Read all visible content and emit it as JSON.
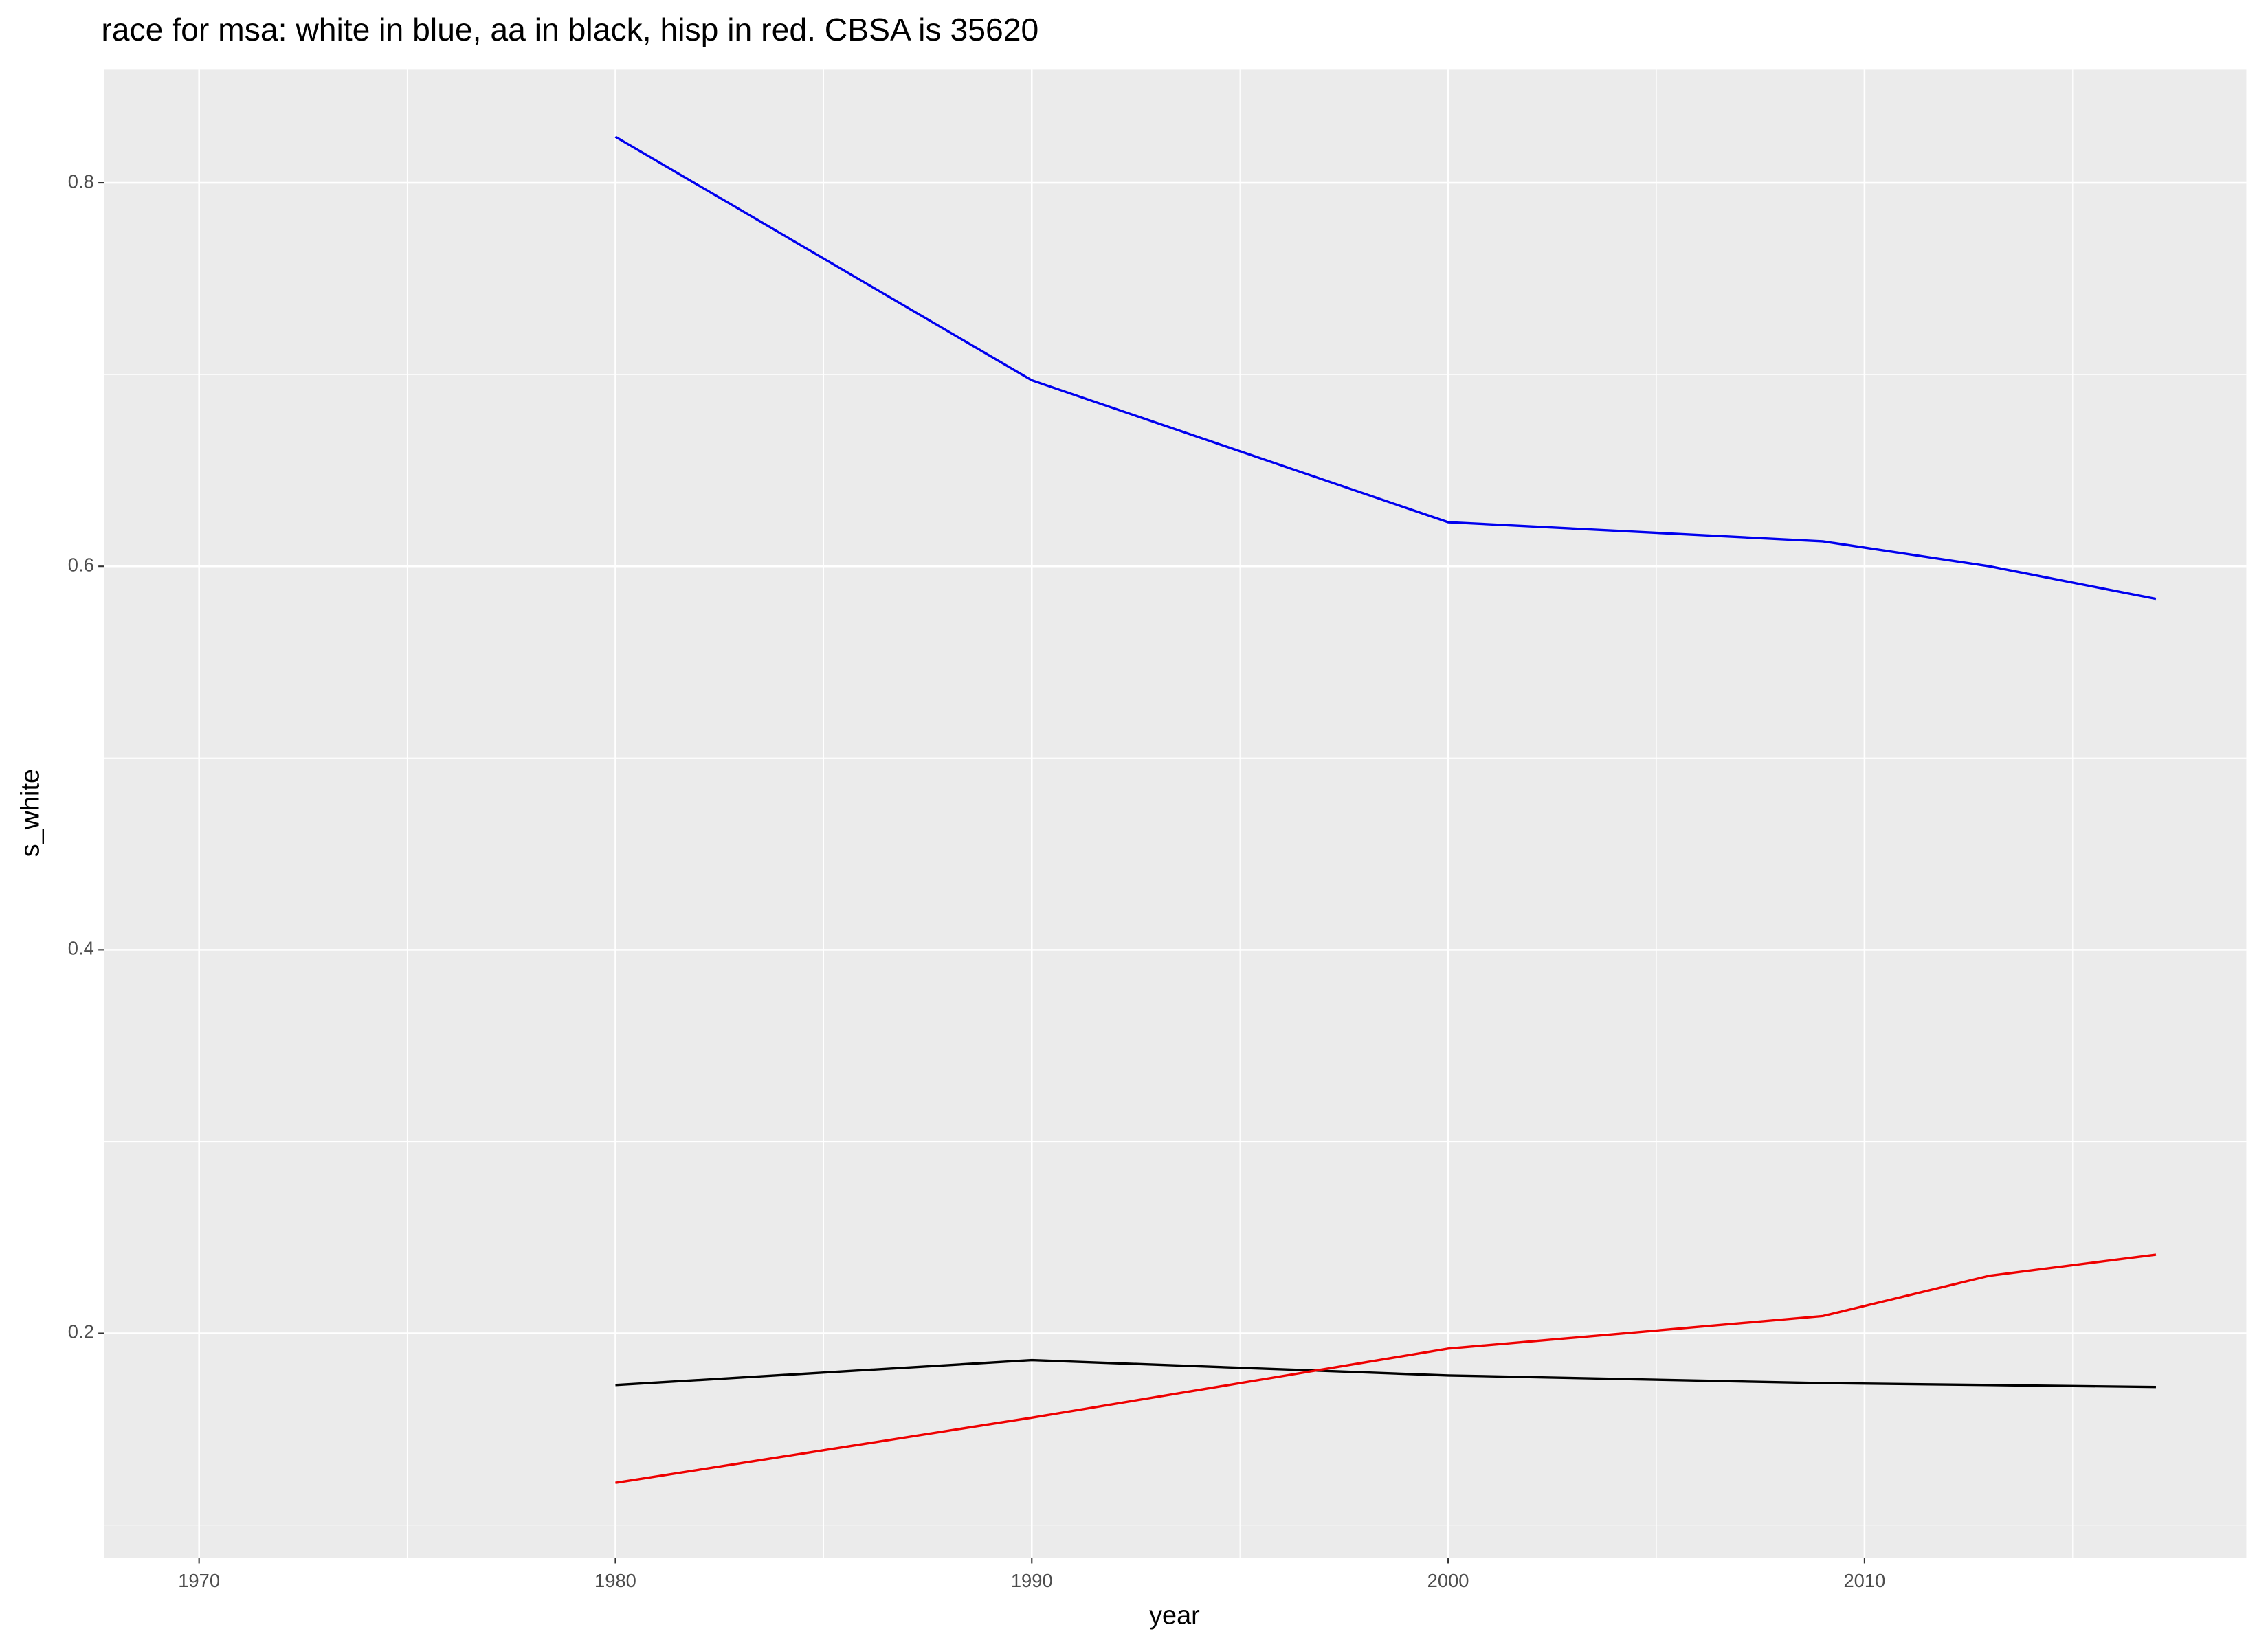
{
  "chart_data": {
    "type": "line",
    "title": "race for msa: white in blue, aa in black, hisp in red. CBSA is 35620",
    "x_label": "year",
    "y_label": "s_white",
    "x": [
      1980,
      1990,
      2000,
      2009,
      2013,
      2017
    ],
    "series": [
      {
        "color": "#0000ee",
        "values": [
          0.824,
          0.697,
          0.623,
          0.613,
          0.6,
          0.583
        ]
      },
      {
        "color": "#000000",
        "values": [
          0.173,
          0.186,
          0.178,
          0.174,
          0.173,
          0.172
        ]
      },
      {
        "color": "#ee0000",
        "values": [
          0.122,
          0.156,
          0.192,
          0.209,
          0.23,
          0.241
        ]
      }
    ],
    "xlim": [
      1967.72,
      2019.17
    ],
    "xticks": [
      1970,
      1980,
      1990,
      2000,
      2010
    ],
    "ylim": [
      0.083,
      0.859
    ],
    "yticks": [
      0.2,
      0.4,
      0.6,
      0.8
    ],
    "grid": true
  }
}
